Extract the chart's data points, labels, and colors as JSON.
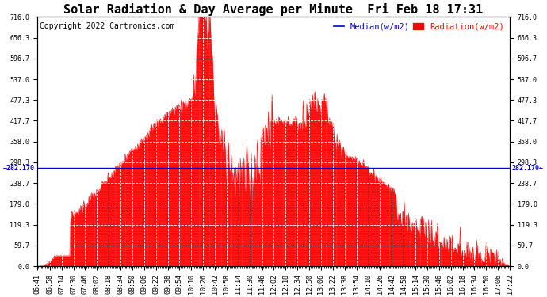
{
  "title": "Solar Radiation & Day Average per Minute  Fri Feb 18 17:31",
  "copyright": "Copyright 2022 Cartronics.com",
  "legend_median": "Median(w/m2)",
  "legend_radiation": "Radiation(w/m2)",
  "median_value": 282.17,
  "ylim": [
    0,
    716.0
  ],
  "yticks": [
    0.0,
    59.7,
    119.3,
    179.0,
    238.7,
    298.3,
    358.0,
    417.7,
    477.3,
    537.0,
    596.7,
    656.3,
    716.0
  ],
  "ytick_labels": [
    "0.0",
    "59.7",
    "119.3",
    "179.0",
    "238.7",
    "298.3",
    "358.0",
    "417.7",
    "477.3",
    "537.0",
    "596.7",
    "656.3",
    "716.0"
  ],
  "background_color": "#ffffff",
  "fill_color": "#ff0000",
  "line_color": "#ff0000",
  "median_color": "#0000cc",
  "title_fontsize": 11,
  "copyright_fontsize": 7,
  "legend_fontsize": 7.5,
  "tick_fontsize": 6,
  "grid_color": "#cccccc",
  "tick_times": [
    "06:41",
    "06:58",
    "07:14",
    "07:30",
    "07:46",
    "08:02",
    "08:18",
    "08:34",
    "08:50",
    "09:06",
    "09:22",
    "09:38",
    "09:54",
    "10:10",
    "10:26",
    "10:42",
    "10:58",
    "11:14",
    "11:30",
    "11:46",
    "12:02",
    "12:18",
    "12:34",
    "12:50",
    "13:06",
    "13:22",
    "13:38",
    "13:54",
    "14:10",
    "14:26",
    "14:42",
    "14:58",
    "15:14",
    "15:30",
    "15:46",
    "16:02",
    "16:18",
    "16:34",
    "16:50",
    "17:06",
    "17:22"
  ]
}
